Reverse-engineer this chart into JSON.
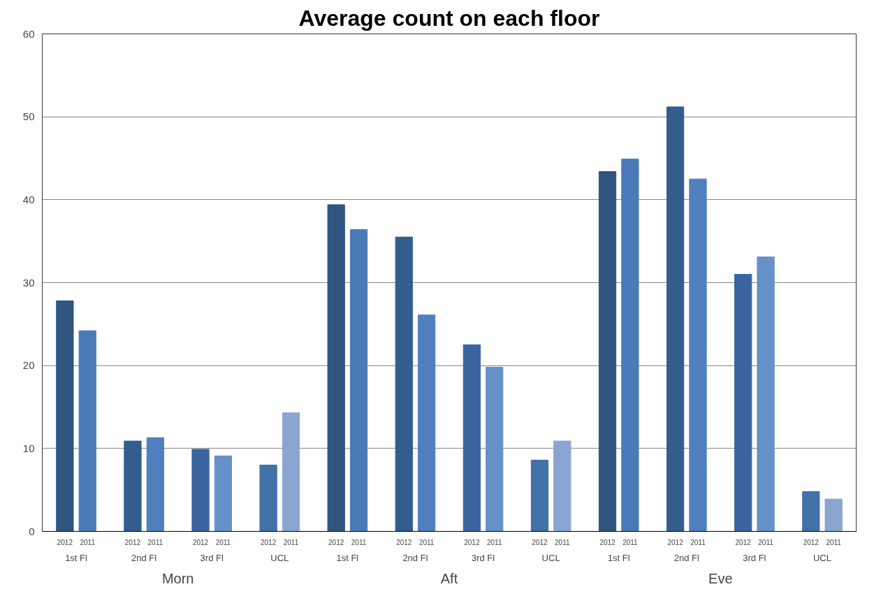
{
  "chart_data": {
    "type": "bar",
    "title": "Average count on each floor",
    "categories": [
      "2012",
      "2011",
      "2012",
      "2011",
      "2012",
      "2011",
      "2012",
      "2011",
      "2012",
      "2011",
      "2012",
      "2011",
      "2012",
      "2011",
      "2012",
      "2011",
      "2012",
      "2011",
      "2012",
      "2011",
      "2012",
      "2011",
      "2012",
      "2011"
    ],
    "values": [
      27.8,
      24.2,
      10.9,
      11.3,
      9.9,
      9.1,
      8.0,
      14.3,
      39.4,
      36.4,
      35.5,
      26.1,
      22.5,
      19.8,
      8.6,
      10.9,
      43.4,
      44.9,
      51.2,
      42.5,
      31.0,
      33.1,
      4.8,
      3.9
    ],
    "colors": [
      "#2f5580",
      "#4a7ab8",
      "#335d8c",
      "#4f80bd",
      "#3a65a0",
      "#6690c8",
      "#4470a8",
      "#8aa6d0",
      "#2f5580",
      "#4a7ab8",
      "#335d8c",
      "#4f80bd",
      "#3a65a0",
      "#6690c8",
      "#4470a8",
      "#8aa6d0",
      "#2f5580",
      "#4a7ab8",
      "#335d8c",
      "#4f80bd",
      "#3a65a0",
      "#6690c8",
      "#4470a8",
      "#8aa6d0"
    ],
    "annotations": [
      "1st Fl",
      "2nd Fl",
      "3rd Fl",
      "UCL",
      "1st Fl",
      "2nd Fl",
      "3rd Fl",
      "UCL",
      "1st Fl",
      "2nd Fl",
      "3rd Fl",
      "UCL",
      "Morn",
      "Aft",
      "Eve"
    ],
    "ylim": [
      0,
      60
    ],
    "yticks": [
      0,
      10,
      20,
      30,
      40,
      50,
      60
    ],
    "grid": "y"
  }
}
